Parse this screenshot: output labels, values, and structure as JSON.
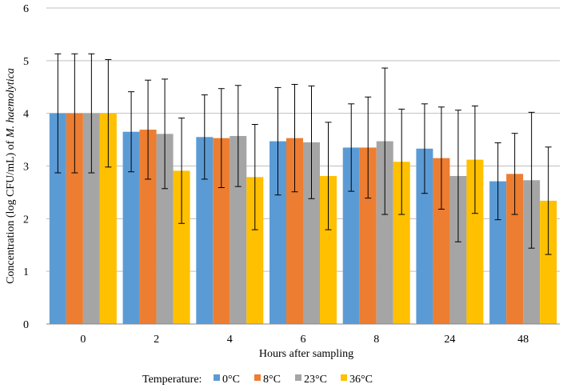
{
  "chart_data": {
    "type": "bar",
    "title": "",
    "xlabel": "Hours after sampling",
    "ylabel_prefix": "Concentration (log CFU/mL) of ",
    "ylabel_species": "M. haemolytica",
    "ylim": [
      0,
      6
    ],
    "yticks": [
      "0",
      "1",
      "2",
      "3",
      "4",
      "5",
      "6"
    ],
    "grid": true,
    "categories": [
      "0",
      "2",
      "4",
      "6",
      "8",
      "24",
      "48"
    ],
    "legend_title": "Temperature:",
    "legend_position": "bottom",
    "series": [
      {
        "name": "0°C",
        "color": "#5B9BD5",
        "values": [
          4.0,
          3.65,
          3.55,
          3.47,
          3.35,
          3.33,
          2.71
        ],
        "errors": [
          1.13,
          0.76,
          0.8,
          1.02,
          0.83,
          0.85,
          0.73
        ]
      },
      {
        "name": "8°C",
        "color": "#ED7D31",
        "values": [
          4.0,
          3.69,
          3.53,
          3.53,
          3.35,
          3.15,
          2.85
        ],
        "errors": [
          1.13,
          0.94,
          0.94,
          1.02,
          0.96,
          0.97,
          0.77
        ]
      },
      {
        "name": "23°C",
        "color": "#A5A5A5",
        "values": [
          4.0,
          3.61,
          3.57,
          3.45,
          3.47,
          2.81,
          2.73
        ],
        "errors": [
          1.13,
          1.04,
          0.96,
          1.07,
          1.39,
          1.25,
          1.29
        ]
      },
      {
        "name": "36°C",
        "color": "#FFC000",
        "values": [
          4.0,
          2.91,
          2.79,
          2.81,
          3.08,
          3.12,
          2.34
        ],
        "errors": [
          1.02,
          1.0,
          1.0,
          1.02,
          1.0,
          1.02,
          1.02
        ]
      }
    ]
  }
}
